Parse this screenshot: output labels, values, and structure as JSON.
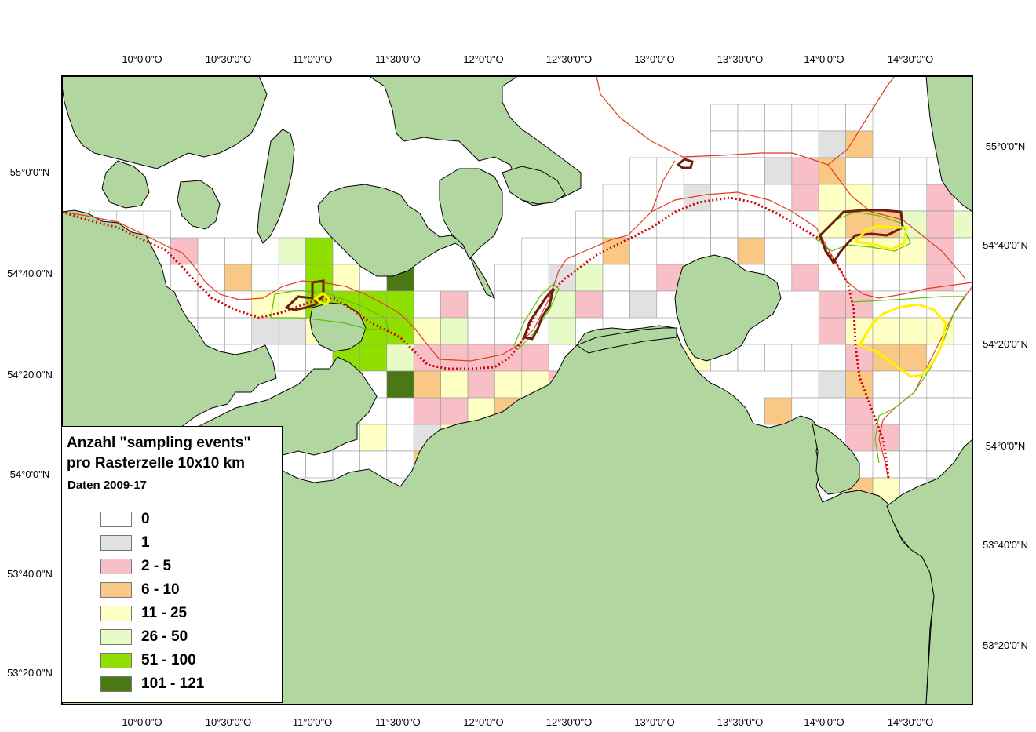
{
  "legend": {
    "title_line1": "Anzahl \"sampling events\"",
    "title_line2": "pro Rasterzelle 10x10 km",
    "subtitle": "Daten 2009-17",
    "classes": [
      {
        "label": "0",
        "color": "#ffffff"
      },
      {
        "label": "1",
        "color": "#e1e1e1"
      },
      {
        "label": "2 - 5",
        "color": "#f8c0c6"
      },
      {
        "label": "6 - 10",
        "color": "#f9c884"
      },
      {
        "label": "11 - 25",
        "color": "#feffc2"
      },
      {
        "label": "26 - 50",
        "color": "#e6fbc6"
      },
      {
        "label": "51 - 100",
        "color": "#8fe000"
      },
      {
        "label": "101 - 121",
        "color": "#4b7714"
      }
    ]
  },
  "axes": {
    "top_longitudes": [
      "10°0'0\"O",
      "10°30'0\"O",
      "11°0'0\"O",
      "11°30'0\"O",
      "12°0'0\"O",
      "12°30'0\"O",
      "13°0'0\"O",
      "13°30'0\"O",
      "14°0'0\"O",
      "14°30'0\"O"
    ],
    "bottom_longitudes": [
      "10°0'0\"O",
      "10°30'0\"O",
      "11°0'0\"O",
      "11°30'0\"O",
      "12°0'0\"O",
      "12°30'0\"O",
      "13°0'0\"O",
      "13°30'0\"O",
      "14°0'0\"O",
      "14°30'0\"O"
    ],
    "left_latitudes": [
      "55°0'0\"N",
      "54°40'0\"N",
      "54°20'0\"N",
      "54°0'0\"N",
      "53°40'0\"N",
      "53°20'0\"N"
    ],
    "right_latitudes": [
      "55°0'0\"N",
      "54°40'0\"N",
      "54°20'0\"N",
      "54°0'0\"N",
      "53°40'0\"N",
      "53°20'0\"N"
    ]
  },
  "colors": {
    "land": "#b2d6a0",
    "sea": "#ffffff",
    "grid_line": "#999999",
    "boundary_red": "#e23b1e",
    "dotted_red": "#d40000",
    "natura_brown": "#6b1f0e",
    "natura_yellow": "#fff200",
    "natura_green": "#5cc100"
  },
  "grid": {
    "description_cells": [
      "row,col,class"
    ],
    "cells": [
      [
        0,
        24,
        0
      ],
      [
        0,
        25,
        0
      ],
      [
        0,
        26,
        0
      ],
      [
        0,
        27,
        0
      ],
      [
        0,
        28,
        0
      ],
      [
        0,
        29,
        0
      ],
      [
        1,
        24,
        0
      ],
      [
        1,
        25,
        0
      ],
      [
        1,
        26,
        0
      ],
      [
        1,
        27,
        0
      ],
      [
        1,
        28,
        1
      ],
      [
        1,
        29,
        3
      ],
      [
        2,
        21,
        0
      ],
      [
        2,
        22,
        0
      ],
      [
        2,
        23,
        0
      ],
      [
        2,
        24,
        0
      ],
      [
        2,
        25,
        0
      ],
      [
        2,
        26,
        1
      ],
      [
        2,
        27,
        2
      ],
      [
        2,
        28,
        3
      ],
      [
        2,
        29,
        0
      ],
      [
        2,
        30,
        0
      ],
      [
        2,
        31,
        0
      ],
      [
        2,
        32,
        0
      ],
      [
        2,
        33,
        0
      ],
      [
        3,
        20,
        0
      ],
      [
        3,
        21,
        0
      ],
      [
        3,
        22,
        0
      ],
      [
        3,
        23,
        1
      ],
      [
        3,
        24,
        0
      ],
      [
        3,
        25,
        0
      ],
      [
        3,
        26,
        0
      ],
      [
        3,
        27,
        2
      ],
      [
        3,
        28,
        4
      ],
      [
        3,
        29,
        4
      ],
      [
        3,
        30,
        0
      ],
      [
        3,
        31,
        0
      ],
      [
        3,
        32,
        2
      ],
      [
        3,
        33,
        0
      ],
      [
        4,
        1,
        0
      ],
      [
        4,
        2,
        0
      ],
      [
        4,
        3,
        0
      ],
      [
        4,
        19,
        0
      ],
      [
        4,
        20,
        0
      ],
      [
        4,
        21,
        0
      ],
      [
        4,
        22,
        0
      ],
      [
        4,
        23,
        0
      ],
      [
        4,
        24,
        0
      ],
      [
        4,
        25,
        0
      ],
      [
        4,
        26,
        0
      ],
      [
        4,
        27,
        0
      ],
      [
        4,
        28,
        4
      ],
      [
        4,
        29,
        3
      ],
      [
        4,
        30,
        3
      ],
      [
        4,
        31,
        5
      ],
      [
        4,
        32,
        2
      ],
      [
        4,
        33,
        5
      ],
      [
        5,
        3,
        0
      ],
      [
        5,
        4,
        2
      ],
      [
        5,
        5,
        0
      ],
      [
        5,
        6,
        0
      ],
      [
        5,
        7,
        0
      ],
      [
        5,
        8,
        5
      ],
      [
        5,
        9,
        6
      ],
      [
        5,
        10,
        0
      ],
      [
        5,
        17,
        0
      ],
      [
        5,
        18,
        0
      ],
      [
        5,
        19,
        0
      ],
      [
        5,
        20,
        3
      ],
      [
        5,
        21,
        0
      ],
      [
        5,
        22,
        0
      ],
      [
        5,
        23,
        0
      ],
      [
        5,
        24,
        0
      ],
      [
        5,
        25,
        3
      ],
      [
        5,
        26,
        0
      ],
      [
        5,
        27,
        0
      ],
      [
        5,
        28,
        0
      ],
      [
        5,
        29,
        4
      ],
      [
        5,
        30,
        4
      ],
      [
        5,
        31,
        4
      ],
      [
        5,
        32,
        2
      ],
      [
        5,
        33,
        0
      ],
      [
        6,
        4,
        0
      ],
      [
        6,
        5,
        0
      ],
      [
        6,
        6,
        3
      ],
      [
        6,
        7,
        0
      ],
      [
        6,
        8,
        0
      ],
      [
        6,
        9,
        6
      ],
      [
        6,
        10,
        4
      ],
      [
        6,
        11,
        0
      ],
      [
        6,
        12,
        7
      ],
      [
        6,
        16,
        0
      ],
      [
        6,
        17,
        0
      ],
      [
        6,
        18,
        1
      ],
      [
        6,
        19,
        5
      ],
      [
        6,
        20,
        0
      ],
      [
        6,
        21,
        0
      ],
      [
        6,
        22,
        2
      ],
      [
        6,
        23,
        0
      ],
      [
        6,
        24,
        0
      ],
      [
        6,
        25,
        0
      ],
      [
        6,
        26,
        0
      ],
      [
        6,
        27,
        2
      ],
      [
        6,
        28,
        0
      ],
      [
        6,
        29,
        0
      ],
      [
        6,
        30,
        0
      ],
      [
        6,
        31,
        0
      ],
      [
        6,
        32,
        2
      ],
      [
        7,
        4,
        0
      ],
      [
        7,
        5,
        0
      ],
      [
        7,
        6,
        0
      ],
      [
        7,
        7,
        4
      ],
      [
        7,
        8,
        4
      ],
      [
        7,
        9,
        6
      ],
      [
        7,
        10,
        6
      ],
      [
        7,
        11,
        6
      ],
      [
        7,
        12,
        6
      ],
      [
        7,
        13,
        0
      ],
      [
        7,
        14,
        2
      ],
      [
        7,
        15,
        0
      ],
      [
        7,
        16,
        0
      ],
      [
        7,
        17,
        0
      ],
      [
        7,
        18,
        5
      ],
      [
        7,
        19,
        2
      ],
      [
        7,
        20,
        0
      ],
      [
        7,
        21,
        1
      ],
      [
        7,
        22,
        0
      ],
      [
        7,
        28,
        2
      ],
      [
        7,
        29,
        2
      ],
      [
        7,
        30,
        0
      ],
      [
        7,
        31,
        0
      ],
      [
        7,
        32,
        0
      ],
      [
        7,
        33,
        0
      ],
      [
        8,
        4,
        0
      ],
      [
        8,
        5,
        0
      ],
      [
        8,
        6,
        0
      ],
      [
        8,
        7,
        1
      ],
      [
        8,
        8,
        1
      ],
      [
        8,
        9,
        4
      ],
      [
        8,
        10,
        6
      ],
      [
        8,
        11,
        6
      ],
      [
        8,
        12,
        6
      ],
      [
        8,
        13,
        4
      ],
      [
        8,
        14,
        5
      ],
      [
        8,
        15,
        0
      ],
      [
        8,
        16,
        0
      ],
      [
        8,
        17,
        0
      ],
      [
        8,
        18,
        5
      ],
      [
        8,
        19,
        0
      ],
      [
        8,
        28,
        2
      ],
      [
        8,
        29,
        4
      ],
      [
        8,
        30,
        4
      ],
      [
        8,
        31,
        4
      ],
      [
        8,
        32,
        4
      ],
      [
        8,
        33,
        0
      ],
      [
        9,
        4,
        0
      ],
      [
        9,
        5,
        0
      ],
      [
        9,
        6,
        0
      ],
      [
        9,
        7,
        0
      ],
      [
        9,
        8,
        0
      ],
      [
        9,
        9,
        0
      ],
      [
        9,
        10,
        6
      ],
      [
        9,
        11,
        6
      ],
      [
        9,
        12,
        5
      ],
      [
        9,
        13,
        2
      ],
      [
        9,
        14,
        2
      ],
      [
        9,
        15,
        2
      ],
      [
        9,
        16,
        2
      ],
      [
        9,
        17,
        2
      ],
      [
        9,
        18,
        0
      ],
      [
        9,
        19,
        0
      ],
      [
        9,
        23,
        4
      ],
      [
        9,
        24,
        0
      ],
      [
        9,
        25,
        0
      ],
      [
        9,
        26,
        0
      ],
      [
        9,
        27,
        0
      ],
      [
        9,
        28,
        0
      ],
      [
        9,
        29,
        2
      ],
      [
        9,
        30,
        3
      ],
      [
        9,
        31,
        3
      ],
      [
        9,
        32,
        0
      ],
      [
        9,
        33,
        0
      ],
      [
        10,
        9,
        0
      ],
      [
        10,
        10,
        0
      ],
      [
        10,
        11,
        0
      ],
      [
        10,
        12,
        7
      ],
      [
        10,
        13,
        3
      ],
      [
        10,
        14,
        4
      ],
      [
        10,
        15,
        2
      ],
      [
        10,
        16,
        4
      ],
      [
        10,
        17,
        4
      ],
      [
        10,
        18,
        2
      ],
      [
        10,
        19,
        0
      ],
      [
        10,
        27,
        0
      ],
      [
        10,
        28,
        1
      ],
      [
        10,
        29,
        3
      ],
      [
        10,
        30,
        0
      ],
      [
        10,
        31,
        0
      ],
      [
        10,
        32,
        0
      ],
      [
        10,
        33,
        0
      ],
      [
        11,
        10,
        0
      ],
      [
        11,
        11,
        0
      ],
      [
        11,
        12,
        0
      ],
      [
        11,
        13,
        2
      ],
      [
        11,
        14,
        2
      ],
      [
        11,
        15,
        4
      ],
      [
        11,
        16,
        3
      ],
      [
        11,
        17,
        1
      ],
      [
        11,
        18,
        0
      ],
      [
        11,
        26,
        3
      ],
      [
        11,
        27,
        0
      ],
      [
        11,
        28,
        0
      ],
      [
        11,
        29,
        2
      ],
      [
        11,
        30,
        0
      ],
      [
        11,
        31,
        0
      ],
      [
        11,
        32,
        0
      ],
      [
        11,
        33,
        0
      ],
      [
        12,
        9,
        0
      ],
      [
        12,
        10,
        0
      ],
      [
        12,
        11,
        4
      ],
      [
        12,
        12,
        0
      ],
      [
        12,
        13,
        1
      ],
      [
        12,
        14,
        4
      ],
      [
        12,
        29,
        2
      ],
      [
        12,
        30,
        2
      ],
      [
        12,
        31,
        0
      ],
      [
        12,
        32,
        0
      ],
      [
        12,
        33,
        0
      ],
      [
        13,
        7,
        1
      ],
      [
        13,
        8,
        0
      ],
      [
        13,
        9,
        0
      ],
      [
        13,
        10,
        0
      ],
      [
        13,
        11,
        0
      ],
      [
        13,
        12,
        0
      ],
      [
        13,
        13,
        3
      ],
      [
        13,
        14,
        5
      ],
      [
        13,
        30,
        0
      ],
      [
        13,
        31,
        0
      ],
      [
        13,
        32,
        0
      ],
      [
        13,
        33,
        0
      ],
      [
        14,
        29,
        3
      ],
      [
        14,
        30,
        4
      ],
      [
        14,
        31,
        0
      ],
      [
        14,
        32,
        1
      ],
      [
        14,
        33,
        0
      ],
      [
        15,
        31,
        0
      ],
      [
        15,
        32,
        0
      ],
      [
        15,
        33,
        0
      ]
    ]
  }
}
